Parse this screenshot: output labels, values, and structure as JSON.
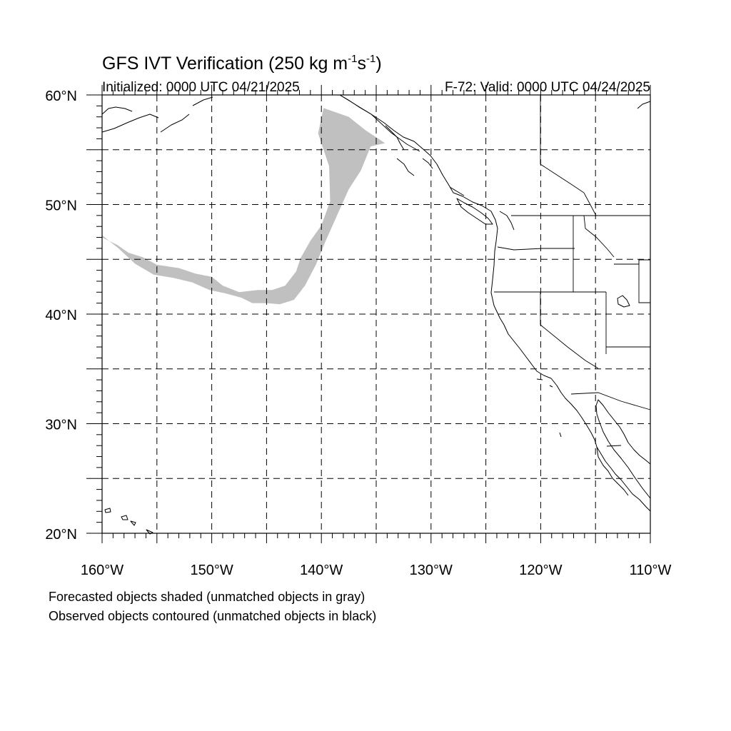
{
  "title": {
    "main_prefix": "GFS IVT Verification (250 kg m",
    "exp1": "-1",
    "mid": "s",
    "exp2": "-1",
    "close": ")",
    "initialized": "Initialized: 0000 UTC 04/21/2025",
    "valid": "F-72: Valid: 0000 UTC 04/24/2025"
  },
  "map": {
    "lon_range": [
      -160,
      -110
    ],
    "lat_range": [
      20,
      60
    ],
    "grid_lon_step": 5,
    "grid_lat_step": 5,
    "grid": "dashed",
    "lon_tick_labels": [
      {
        "lon": -160,
        "text": "160°W"
      },
      {
        "lon": -150,
        "text": "150°W"
      },
      {
        "lon": -140,
        "text": "140°W"
      },
      {
        "lon": -130,
        "text": "130°W"
      },
      {
        "lon": -120,
        "text": "120°W"
      },
      {
        "lon": -110,
        "text": "110°W"
      }
    ],
    "lat_tick_labels": [
      {
        "lat": 60,
        "text": "60°N"
      },
      {
        "lat": 50,
        "text": "50°N"
      },
      {
        "lat": 40,
        "text": "40°N"
      },
      {
        "lat": 30,
        "text": "30°N"
      },
      {
        "lat": 20,
        "text": "20°N"
      }
    ],
    "colors": {
      "forecast_unmatched": "#c0c0c0",
      "lines": "#000000"
    },
    "forecast_object": {
      "status": "unmatched",
      "fill": "gray",
      "outline": [
        [
          -160,
          47.2
        ],
        [
          -158.5,
          46.0
        ],
        [
          -157,
          44.6
        ],
        [
          -155.3,
          43.6
        ],
        [
          -153.5,
          43.3
        ],
        [
          -151.8,
          42.9
        ],
        [
          -150.2,
          42.2
        ],
        [
          -148.8,
          41.9
        ],
        [
          -147.3,
          41.5
        ],
        [
          -146.3,
          41.0
        ],
        [
          -145,
          41.0
        ],
        [
          -143.8,
          40.9
        ],
        [
          -142.5,
          41.3
        ],
        [
          -141.5,
          42.6
        ],
        [
          -140.5,
          44.5
        ],
        [
          -139.6,
          46.7
        ],
        [
          -138.4,
          49.4
        ],
        [
          -137.5,
          51.4
        ],
        [
          -136.4,
          53.1
        ],
        [
          -135.5,
          55.3
        ],
        [
          -134.2,
          55.6
        ],
        [
          -136.0,
          56.8
        ],
        [
          -137.5,
          58.0
        ],
        [
          -139.8,
          58.8
        ],
        [
          -140.3,
          56.5
        ],
        [
          -139.3,
          53.5
        ],
        [
          -139.2,
          50.3
        ],
        [
          -140.0,
          48.1
        ],
        [
          -141.0,
          46.7
        ],
        [
          -141.9,
          45.1
        ],
        [
          -142.3,
          43.9
        ],
        [
          -143.3,
          42.6
        ],
        [
          -144.5,
          42.2
        ],
        [
          -145.8,
          42.2
        ],
        [
          -147.5,
          42.0
        ],
        [
          -149,
          42.6
        ],
        [
          -150.0,
          43.4
        ],
        [
          -151.5,
          43.7
        ],
        [
          -153.0,
          44.2
        ],
        [
          -155.0,
          44.5
        ],
        [
          -156.3,
          45.2
        ],
        [
          -157.6,
          45.6
        ],
        [
          -158.6,
          46.3
        ],
        [
          -160,
          47.0
        ]
      ]
    }
  },
  "caption": {
    "line1": "Forecasted objects shaded (unmatched objects in gray)",
    "line2": "Observed objects contoured (unmatched objects in black)"
  }
}
